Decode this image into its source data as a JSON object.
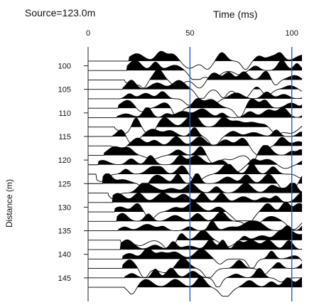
{
  "header": {
    "source": "Source=123.0m"
  },
  "chart_data": {
    "type": "line",
    "title": "",
    "xlabel": "Time (ms)",
    "ylabel": "Distance (m)",
    "xlim": [
      0,
      105
    ],
    "ylim": [
      96,
      150
    ],
    "x_axis_position": "top",
    "y_axis_inverted": true,
    "x_ticks": [
      "0",
      "50",
      "100"
    ],
    "y_ticks": [
      "100",
      "105",
      "110",
      "115",
      "120",
      "125",
      "130",
      "135",
      "140",
      "145"
    ],
    "marker_lines_ms": [
      50,
      100
    ],
    "marker_color": "#1f5fd8",
    "trace_color": "#000000",
    "fill": "positive-lobes-black",
    "grid": false,
    "legend": "none",
    "traces": [
      {
        "distance": 99,
        "first_break_ms": 20
      },
      {
        "distance": 101,
        "first_break_ms": 19
      },
      {
        "distance": 103,
        "first_break_ms": 18
      },
      {
        "distance": 105,
        "first_break_ms": 17
      },
      {
        "distance": 107,
        "first_break_ms": 16
      },
      {
        "distance": 109,
        "first_break_ms": 15
      },
      {
        "distance": 111,
        "first_break_ms": 14
      },
      {
        "distance": 113,
        "first_break_ms": 13
      },
      {
        "distance": 115,
        "first_break_ms": 12
      },
      {
        "distance": 117,
        "first_break_ms": 11
      },
      {
        "distance": 119,
        "first_break_ms": 8
      },
      {
        "distance": 121,
        "first_break_ms": 5
      },
      {
        "distance": 123,
        "first_break_ms": 4
      },
      {
        "distance": 125,
        "first_break_ms": 7
      },
      {
        "distance": 127,
        "first_break_ms": 10
      },
      {
        "distance": 129,
        "first_break_ms": 12
      },
      {
        "distance": 131,
        "first_break_ms": 13
      },
      {
        "distance": 133,
        "first_break_ms": 14
      },
      {
        "distance": 135,
        "first_break_ms": 15
      },
      {
        "distance": 137,
        "first_break_ms": 16
      },
      {
        "distance": 139,
        "first_break_ms": 16
      },
      {
        "distance": 141,
        "first_break_ms": 17
      },
      {
        "distance": 143,
        "first_break_ms": 17
      },
      {
        "distance": 145,
        "first_break_ms": 18
      },
      {
        "distance": 147,
        "first_break_ms": 18
      }
    ]
  }
}
